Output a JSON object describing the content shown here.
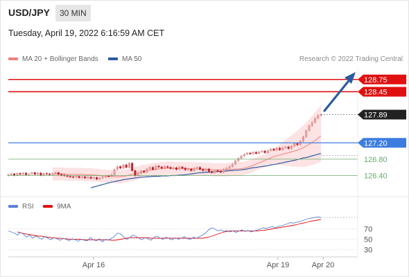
{
  "header": {
    "pair": "USD/JPY",
    "timeframe": "30 MIN"
  },
  "datetime": "Tuesday, April 19, 2022 6:16:59 AM CET",
  "legend": {
    "ma20": {
      "label": "MA 20 + Bollinger Bands",
      "color": "#f08080"
    },
    "ma50": {
      "label": "MA 50",
      "color": "#2c5aa0"
    }
  },
  "copyright": "Research © 2022 Trading Central",
  "colors": {
    "bull": "#e8a3a3",
    "bear": "#c0202a",
    "resistance": "#e01010",
    "support": "#3d7de0",
    "support_minor": "#6aa86a",
    "last_price": "#222222",
    "band_fill": "#fde3e3",
    "arrow": "#2c5aa0",
    "rsi": "#5a82d6",
    "rsi_ma": "#e01010"
  },
  "chart_data": [
    {
      "type": "candlestick",
      "symbol": "USD/JPY",
      "timeframe": "30 MIN",
      "ylim": [
        126.12,
        129.0
      ],
      "x_ticks": [
        "Apr 16",
        "Apr 19",
        "Apr 20"
      ],
      "levels": [
        {
          "value": 128.75,
          "label": "128.75",
          "kind": "resistance"
        },
        {
          "value": 128.45,
          "label": "128.45",
          "kind": "resistance"
        },
        {
          "value": 127.89,
          "label": "127.89",
          "kind": "last"
        },
        {
          "value": 127.2,
          "label": "127.20",
          "kind": "support"
        },
        {
          "value": 126.8,
          "label": "126.80",
          "kind": "support-minor"
        },
        {
          "value": 126.4,
          "label": "126.40",
          "kind": "support-minor"
        }
      ],
      "close": [
        126.42,
        126.44,
        126.41,
        126.45,
        126.43,
        126.46,
        126.42,
        126.44,
        126.47,
        126.43,
        126.46,
        126.41,
        126.45,
        126.44,
        126.42,
        126.45,
        126.47,
        126.43,
        126.41,
        126.4,
        126.38,
        126.37,
        126.36,
        126.38,
        126.35,
        126.37,
        126.34,
        126.36,
        126.33,
        126.35,
        126.31,
        126.34,
        126.36,
        126.39,
        126.38,
        126.42,
        126.55,
        126.62,
        126.58,
        126.66,
        126.6,
        126.7,
        126.52,
        126.4,
        126.45,
        126.51,
        126.48,
        126.56,
        126.6,
        126.55,
        126.63,
        126.61,
        126.58,
        126.62,
        126.6,
        126.57,
        126.59,
        126.55,
        126.61,
        126.58,
        126.54,
        126.56,
        126.52,
        126.58,
        126.6,
        126.55,
        126.52,
        126.56,
        126.5,
        126.47,
        126.52,
        126.5,
        126.48,
        126.55,
        126.58,
        126.62,
        126.68,
        126.76,
        126.82,
        126.88,
        126.92,
        126.95,
        126.93,
        126.97,
        126.94,
        126.98,
        127.0,
        126.96,
        127.01,
        127.05,
        127.02,
        127.07,
        127.03,
        127.08,
        127.1,
        127.06,
        127.12,
        127.18,
        127.15,
        127.24,
        127.35,
        127.5,
        127.62,
        127.7,
        127.8,
        127.87,
        127.89
      ],
      "ma20": [
        126.44,
        126.44,
        126.44,
        126.44,
        126.44,
        126.43,
        126.43,
        126.43,
        126.43,
        126.43,
        126.43,
        126.42,
        126.42,
        126.42,
        126.41,
        126.41,
        126.4,
        126.39,
        126.39,
        126.38,
        126.38,
        126.37,
        126.37,
        126.37,
        126.38,
        126.39,
        126.41,
        126.43,
        126.45,
        126.47,
        126.49,
        126.51,
        126.52,
        126.53,
        126.54,
        126.55,
        126.56,
        126.57,
        126.57,
        126.58,
        126.58,
        126.57,
        126.57,
        126.57,
        126.57,
        126.57,
        126.57,
        126.56,
        126.56,
        126.56,
        126.56,
        126.56,
        126.55,
        126.55,
        126.55,
        126.54,
        126.54,
        126.54,
        126.54,
        126.54,
        126.55,
        126.55,
        126.56,
        126.56,
        126.57,
        126.58,
        126.6,
        126.62,
        126.65,
        126.68,
        126.71,
        126.74,
        126.77,
        126.8,
        126.83,
        126.86,
        126.88,
        126.9,
        126.92,
        126.94,
        126.96,
        126.98,
        127.0,
        127.02,
        127.05,
        127.08,
        127.12,
        127.16,
        127.21,
        127.26,
        127.31,
        127.37
      ],
      "ma50": [
        126.1,
        126.12,
        126.14,
        126.16,
        126.18,
        126.2,
        126.22,
        126.24,
        126.25,
        126.27,
        126.28,
        126.3,
        126.31,
        126.32,
        126.33,
        126.34,
        126.35,
        126.36,
        126.36,
        126.37,
        126.37,
        126.38,
        126.38,
        126.38,
        126.39,
        126.39,
        126.39,
        126.4,
        126.4,
        126.4,
        126.41,
        126.41,
        126.42,
        126.43,
        126.44,
        126.45,
        126.46,
        126.47,
        126.47,
        126.48,
        126.48,
        126.49,
        126.49,
        126.5,
        126.5,
        126.51,
        126.51,
        126.52,
        126.52,
        126.53,
        126.53,
        126.54,
        126.55,
        126.56,
        126.58,
        126.59,
        126.6,
        126.61,
        126.62,
        126.63,
        126.64,
        126.66,
        126.67,
        126.68,
        126.7,
        126.71,
        126.73,
        126.74,
        126.76,
        126.77,
        126.79,
        126.81,
        126.83,
        126.84,
        126.86,
        126.88,
        126.9,
        126.92,
        126.94
      ],
      "bb_width": 0.16
    },
    {
      "type": "line",
      "title": "RSI",
      "series": [
        {
          "name": "RSI",
          "color": "#5a82d6"
        },
        {
          "name": "9MA",
          "color": "#e01010"
        }
      ],
      "ylim": [
        20,
        100
      ],
      "ticks": [
        70,
        50,
        30
      ],
      "rsi": [
        66,
        64,
        62,
        58,
        63,
        60,
        54,
        58,
        52,
        56,
        53,
        50,
        55,
        52,
        49,
        53,
        51,
        48,
        52,
        50,
        47,
        51,
        49,
        46,
        50,
        48,
        47,
        53,
        49,
        47,
        51,
        45,
        50,
        48,
        52,
        56,
        62,
        60,
        55,
        50,
        53,
        58,
        56,
        52,
        49,
        53,
        51,
        48,
        54,
        56,
        52,
        50,
        54,
        51,
        49,
        53,
        50,
        52,
        55,
        51,
        50,
        54,
        52,
        55,
        58,
        62,
        68,
        72,
        70,
        66,
        68,
        65,
        67,
        64,
        66,
        63,
        66,
        68,
        65,
        67,
        64,
        66,
        68,
        70,
        72,
        71,
        73,
        74,
        72,
        75,
        76,
        78,
        80,
        82,
        81,
        83,
        84,
        86,
        88,
        90,
        91,
        92,
        93,
        92
      ],
      "rsi_ma": [
        64,
        63,
        61,
        60,
        59,
        58,
        57,
        56,
        56,
        55,
        54,
        53,
        53,
        52,
        52,
        51,
        51,
        50,
        50,
        50,
        50,
        50,
        49,
        49,
        49,
        49,
        49,
        49,
        49,
        49,
        49,
        48,
        48,
        49,
        50,
        51,
        52,
        53,
        53,
        53,
        53,
        53,
        53,
        53,
        52,
        52,
        52,
        52,
        52,
        52,
        52,
        52,
        52,
        52,
        52,
        52,
        52,
        52,
        52,
        52,
        52,
        52,
        53,
        54,
        56,
        58,
        60,
        62,
        64,
        65,
        66,
        66,
        66,
        66,
        66,
        66,
        66,
        66,
        66,
        66,
        67,
        67,
        68,
        69,
        70,
        71,
        72,
        73,
        74,
        75,
        76,
        77,
        78,
        80,
        81,
        82,
        84,
        85,
        86,
        87,
        88
      ]
    }
  ]
}
